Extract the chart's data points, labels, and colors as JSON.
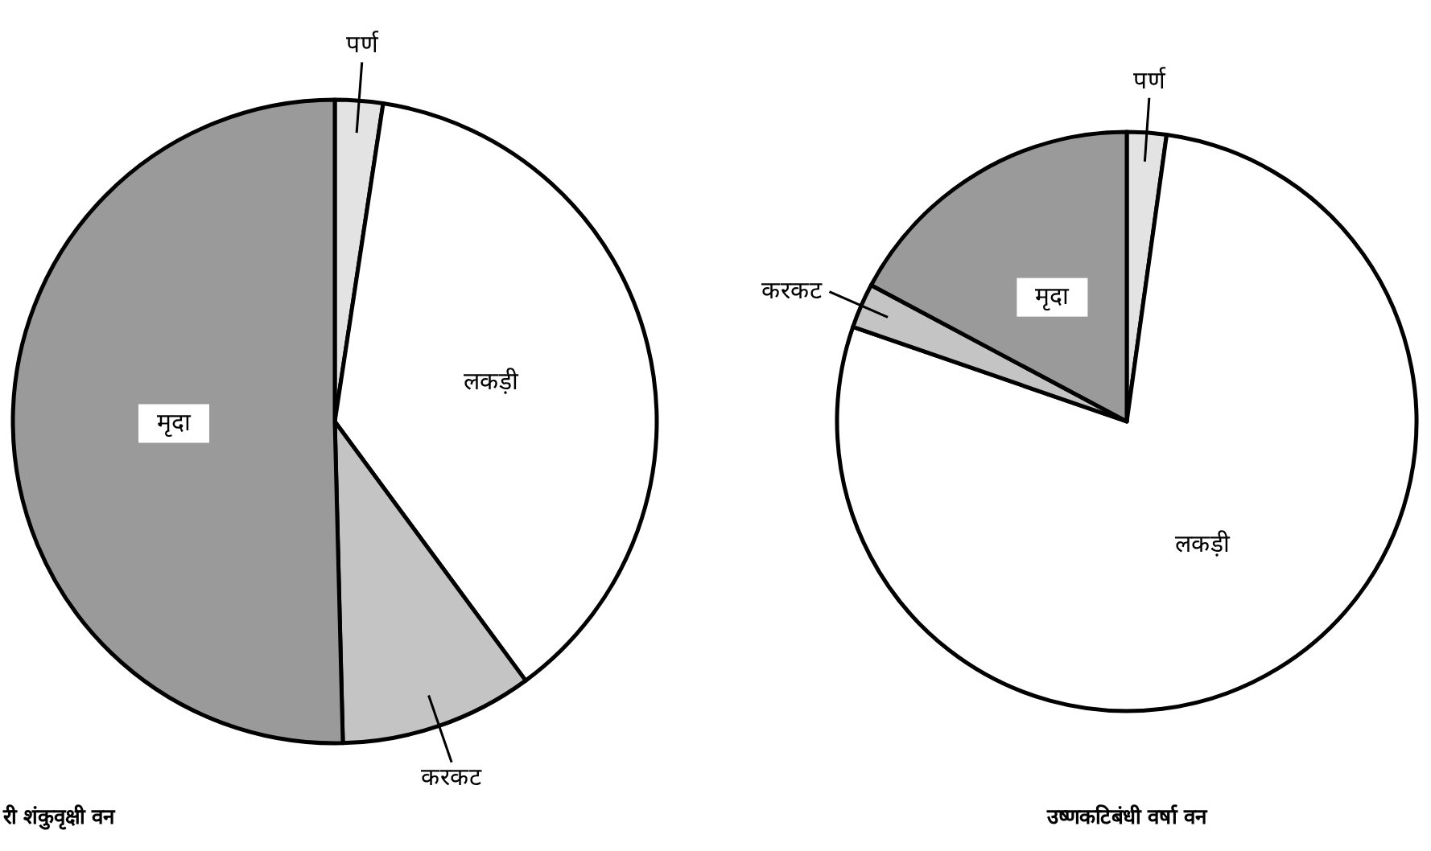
{
  "chart_data": [
    {
      "type": "pie",
      "title": "री शंकुवृक्षी वन",
      "categories": [
        "पर्ण",
        "लकड़ी",
        "करकट",
        "मृदा"
      ],
      "values": [
        2.4,
        37.5,
        9.7,
        50.4
      ],
      "colors": [
        "#e3e3e3",
        "#ffffff",
        "#c4c4c4",
        "#9a9a9a"
      ]
    },
    {
      "type": "pie",
      "title": "उष्णकटिबंधी वर्षा वन",
      "categories": [
        "पर्ण",
        "लकड़ी",
        "करकट",
        "मृदा"
      ],
      "values": [
        2.2,
        78.1,
        2.5,
        17.2
      ],
      "colors": [
        "#e3e3e3",
        "#ffffff",
        "#c4c4c4",
        "#9a9a9a"
      ]
    }
  ]
}
